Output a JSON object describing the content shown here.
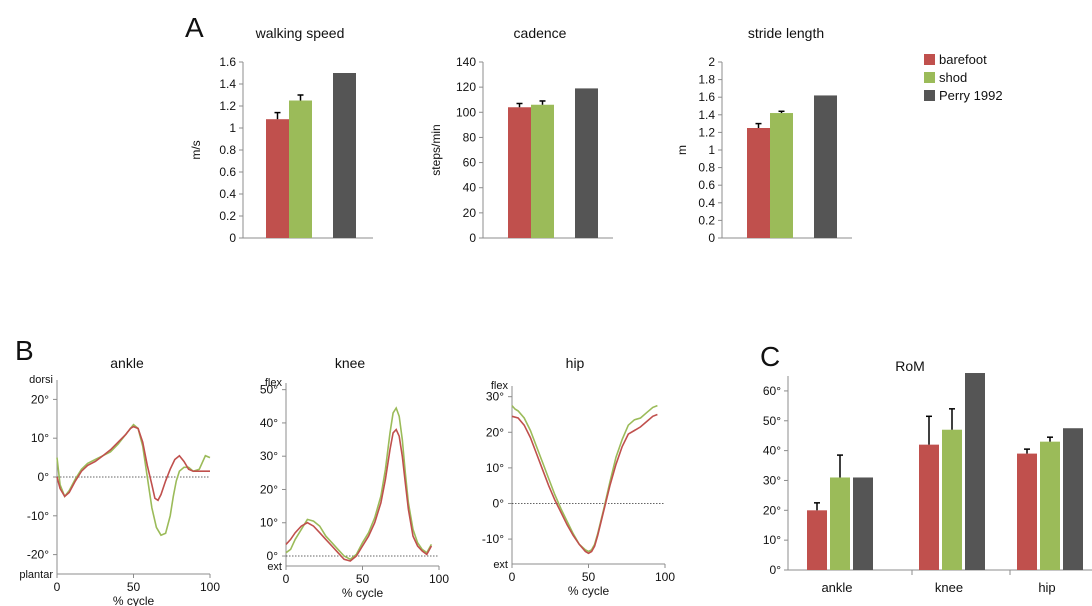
{
  "colors": {
    "barefoot": "#c0504d",
    "shod": "#9bbb59",
    "perry": "#555555",
    "axis": "#8c8c8c",
    "zero_line": "#333333"
  },
  "panel_labels": {
    "a": "A",
    "b": "B",
    "c": "C"
  },
  "legend": [
    {
      "label": "barefoot",
      "color": "#c0504d"
    },
    {
      "label": "shod",
      "color": "#9bbb59"
    },
    {
      "label": "Perry 1992",
      "color": "#555555"
    }
  ],
  "chart_data": [
    {
      "id": "walking_speed",
      "type": "bar",
      "title": "walking speed",
      "ylabel": "m/s",
      "ylim": [
        0,
        1.6
      ],
      "yticks": [
        "0",
        "0.2",
        "0.4",
        "0.6",
        "0.8",
        "1",
        "1.2",
        "1.4",
        "1.6"
      ],
      "series": [
        {
          "name": "barefoot",
          "values": [
            1.08
          ],
          "error": [
            0.06
          ]
        },
        {
          "name": "shod",
          "values": [
            1.25
          ],
          "error": [
            0.05
          ]
        },
        {
          "name": "Perry 1992",
          "values": [
            1.5
          ]
        }
      ]
    },
    {
      "id": "cadence",
      "type": "bar",
      "title": "cadence",
      "ylabel": "steps/min",
      "ylim": [
        0,
        140
      ],
      "yticks": [
        "0",
        "20",
        "40",
        "60",
        "80",
        "100",
        "120",
        "140"
      ],
      "series": [
        {
          "name": "barefoot",
          "values": [
            104
          ],
          "error": [
            3
          ]
        },
        {
          "name": "shod",
          "values": [
            106
          ],
          "error": [
            3
          ]
        },
        {
          "name": "Perry 1992",
          "values": [
            119
          ]
        }
      ]
    },
    {
      "id": "stride_length",
      "type": "bar",
      "title": "stride length",
      "ylabel": "m",
      "ylim": [
        0,
        2
      ],
      "yticks": [
        "0",
        "0.2",
        "0.4",
        "0.6",
        "0.8",
        "1",
        "1.2",
        "1.4",
        "1.6",
        "1.8",
        "2"
      ],
      "series": [
        {
          "name": "barefoot",
          "values": [
            1.25
          ],
          "error": [
            0.05
          ]
        },
        {
          "name": "shod",
          "values": [
            1.42
          ],
          "error": [
            0.02
          ]
        },
        {
          "name": "Perry 1992",
          "values": [
            1.62
          ]
        }
      ]
    },
    {
      "id": "ankle",
      "type": "line",
      "title": "ankle",
      "xlabel": "% cycle",
      "ylim": [
        -25,
        25
      ],
      "xlim": [
        0,
        100
      ],
      "xticks": [
        "0",
        "50",
        "100"
      ],
      "yticks": [
        {
          "v": 20,
          "label": "20°"
        },
        {
          "v": 10,
          "label": "10°"
        },
        {
          "v": 0,
          "label": "0°"
        },
        {
          "v": -10,
          "label": "-10°"
        },
        {
          "v": -20,
          "label": "-20°"
        }
      ],
      "top_label": "dorsi",
      "bottom_label": "plantar",
      "series": [
        {
          "name": "barefoot",
          "x": [
            0,
            2,
            5,
            8,
            12,
            16,
            20,
            25,
            30,
            35,
            40,
            45,
            48,
            50,
            53,
            56,
            59,
            62,
            64,
            66,
            68,
            71,
            74,
            77,
            80,
            83,
            86,
            89,
            93,
            97,
            100
          ],
          "y": [
            0,
            -3,
            -5,
            -4,
            -1,
            1.5,
            3,
            4,
            5.5,
            7,
            9,
            11,
            12.5,
            13,
            12.5,
            9,
            3,
            -2,
            -5.5,
            -6,
            -4.5,
            -1,
            2,
            4.5,
            5.5,
            4,
            2,
            1.5,
            1.5,
            1.5,
            1.5
          ]
        },
        {
          "name": "shod",
          "x": [
            0,
            2,
            5,
            8,
            12,
            16,
            20,
            25,
            30,
            35,
            40,
            45,
            48,
            50,
            53,
            56,
            59,
            62,
            65,
            68,
            71,
            74,
            76,
            78,
            80,
            83,
            86,
            89,
            93,
            97,
            100
          ],
          "y": [
            5,
            -2,
            -5,
            -3.5,
            -0.5,
            2,
            3.5,
            4.5,
            5.5,
            6.5,
            8.5,
            11,
            12.5,
            13.5,
            12.5,
            8,
            0,
            -8,
            -13,
            -15,
            -14.5,
            -10,
            -5,
            -1,
            1.5,
            2.5,
            2.5,
            1.5,
            2,
            5.5,
            5
          ]
        }
      ]
    },
    {
      "id": "knee",
      "type": "line",
      "title": "knee",
      "xlabel": "% cycle",
      "ylim": [
        -3,
        52
      ],
      "xlim": [
        0,
        100
      ],
      "xticks": [
        "0",
        "50",
        "100"
      ],
      "yticks": [
        {
          "v": 50,
          "label": "50°"
        },
        {
          "v": 40,
          "label": "40°"
        },
        {
          "v": 30,
          "label": "30°"
        },
        {
          "v": 20,
          "label": "20°"
        },
        {
          "v": 10,
          "label": "10°"
        },
        {
          "v": 0,
          "label": "0°"
        }
      ],
      "top_label": "flex",
      "bottom_label": "ext",
      "series": [
        {
          "name": "barefoot",
          "x": [
            0,
            3,
            6,
            10,
            14,
            18,
            22,
            26,
            30,
            34,
            38,
            42,
            46,
            50,
            54,
            58,
            62,
            65,
            68,
            70,
            72,
            74,
            76,
            78,
            80,
            83,
            86,
            89,
            92,
            95
          ],
          "y": [
            3.5,
            5,
            7,
            9,
            10,
            9,
            7,
            5,
            3,
            1,
            -1,
            -1.5,
            0,
            3,
            6,
            10,
            16,
            23,
            32,
            37,
            38,
            36,
            30,
            22,
            14,
            6,
            3,
            1.5,
            0.5,
            3
          ]
        },
        {
          "name": "shod",
          "x": [
            0,
            3,
            6,
            10,
            14,
            18,
            22,
            26,
            30,
            34,
            38,
            42,
            46,
            50,
            54,
            58,
            62,
            65,
            68,
            70,
            72,
            74,
            76,
            78,
            80,
            83,
            86,
            89,
            92,
            95
          ],
          "y": [
            1,
            2,
            5,
            8,
            11,
            10.5,
            9,
            6,
            4,
            2,
            0,
            -1,
            0.5,
            4,
            7,
            11.5,
            18,
            26,
            37,
            43,
            44.5,
            42,
            35,
            25,
            16,
            8,
            4,
            2,
            1,
            3.5
          ]
        }
      ]
    },
    {
      "id": "hip",
      "type": "line",
      "title": "hip",
      "xlabel": "% cycle",
      "ylim": [
        -17,
        33
      ],
      "xlim": [
        0,
        100
      ],
      "xticks": [
        "0",
        "50",
        "100"
      ],
      "yticks": [
        {
          "v": 30,
          "label": "30°"
        },
        {
          "v": 20,
          "label": "20°"
        },
        {
          "v": 10,
          "label": "10°"
        },
        {
          "v": 0,
          "label": "0°"
        },
        {
          "v": -10,
          "label": "-10°"
        }
      ],
      "top_label": "flex",
      "bottom_label": "ext",
      "series": [
        {
          "name": "barefoot",
          "x": [
            0,
            4,
            8,
            12,
            16,
            20,
            24,
            28,
            32,
            36,
            40,
            44,
            48,
            50,
            52,
            54,
            56,
            60,
            64,
            68,
            72,
            76,
            80,
            84,
            88,
            92,
            95
          ],
          "y": [
            24.5,
            24,
            22,
            18.5,
            14,
            9.5,
            5,
            1,
            -2.5,
            -6,
            -9,
            -11.5,
            -13.5,
            -14,
            -13.5,
            -12,
            -9,
            -2,
            5,
            11,
            16,
            19.5,
            20.5,
            21.5,
            23,
            24.5,
            25
          ]
        },
        {
          "name": "shod",
          "x": [
            0,
            2,
            4,
            8,
            12,
            16,
            20,
            24,
            28,
            32,
            36,
            40,
            44,
            48,
            50,
            52,
            54,
            56,
            60,
            64,
            68,
            72,
            76,
            80,
            84,
            88,
            92,
            95
          ],
          "y": [
            27.5,
            26.5,
            26,
            24,
            20.5,
            16,
            11.5,
            7,
            2.5,
            -1.5,
            -5,
            -8.5,
            -11.5,
            -13,
            -13.5,
            -13,
            -11.5,
            -8.5,
            -1.5,
            6,
            13,
            18,
            22,
            23.5,
            24,
            25.5,
            27,
            27.5
          ]
        }
      ]
    },
    {
      "id": "rom",
      "type": "bar",
      "title": "RoM",
      "categories": [
        "ankle",
        "knee",
        "hip"
      ],
      "ylim": [
        0,
        65
      ],
      "yticks": [
        {
          "v": 0,
          "label": "0°"
        },
        {
          "v": 10,
          "label": "10°"
        },
        {
          "v": 20,
          "label": "20°"
        },
        {
          "v": 30,
          "label": "30°"
        },
        {
          "v": 40,
          "label": "40°"
        },
        {
          "v": 50,
          "label": "50°"
        },
        {
          "v": 60,
          "label": "60°"
        }
      ],
      "series": [
        {
          "name": "barefoot",
          "values": [
            20,
            42,
            39
          ],
          "error": [
            2.5,
            9.5,
            1.5
          ]
        },
        {
          "name": "shod",
          "values": [
            31,
            47,
            43
          ],
          "error": [
            7.5,
            7,
            1.5
          ]
        },
        {
          "name": "Perry 1992",
          "values": [
            31,
            66,
            47.5
          ]
        }
      ]
    }
  ]
}
